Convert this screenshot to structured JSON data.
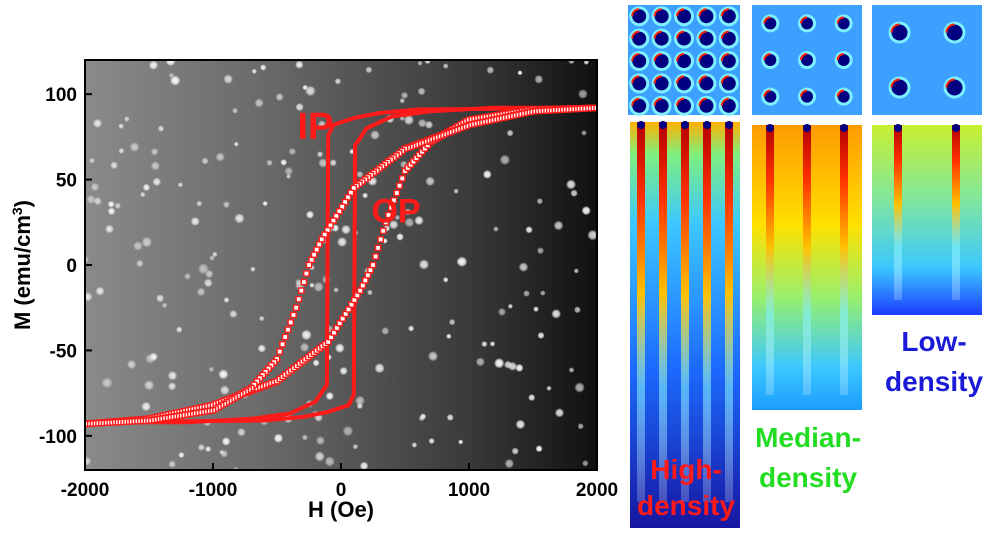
{
  "chart_data": {
    "type": "line",
    "xlabel": "H (Oe)",
    "ylabel_main": "M (emu/cm",
    "ylabel_sup": "3",
    "ylabel_close": ")",
    "xlim": [
      -2000,
      2000
    ],
    "ylim": [
      -120,
      120
    ],
    "x_ticks": [
      -2000,
      -1000,
      0,
      1000,
      2000
    ],
    "y_ticks": [
      -100,
      -50,
      0,
      50,
      100
    ],
    "x_tick_labels": [
      "-2000",
      "-1000",
      "0",
      "1000",
      "2000"
    ],
    "y_tick_labels": [
      "-100",
      "-50",
      "0",
      "50",
      "100"
    ],
    "background": "SEM image of nanodot array (grayscale)",
    "annotations": [
      {
        "text": "IP",
        "x": -200,
        "y": 82
      },
      {
        "text": "OP",
        "x": 430,
        "y": 32
      }
    ],
    "series": [
      {
        "name": "IP",
        "style": "solid",
        "color": "#ff1a1a",
        "ascending": [
          [
            -2000,
            -92
          ],
          [
            -600,
            -91
          ],
          [
            -300,
            -89
          ],
          [
            -100,
            -86
          ],
          [
            60,
            -82
          ],
          [
            100,
            -76
          ],
          [
            110,
            70
          ],
          [
            200,
            80
          ],
          [
            400,
            87
          ],
          [
            700,
            90
          ],
          [
            1200,
            92
          ],
          [
            2000,
            92
          ]
        ],
        "descending": [
          [
            2000,
            92
          ],
          [
            600,
            91
          ],
          [
            300,
            89
          ],
          [
            100,
            86
          ],
          [
            -60,
            82
          ],
          [
            -100,
            76
          ],
          [
            -110,
            -70
          ],
          [
            -200,
            -80
          ],
          [
            -400,
            -87
          ],
          [
            -700,
            -90
          ],
          [
            -1200,
            -92
          ],
          [
            -2000,
            -92
          ]
        ]
      },
      {
        "name": "OP",
        "style": "dotted",
        "color": "#ff1a1a",
        "ascending": [
          [
            -2000,
            -93
          ],
          [
            -1500,
            -90
          ],
          [
            -1000,
            -82
          ],
          [
            -500,
            -68
          ],
          [
            -100,
            -45
          ],
          [
            150,
            -15
          ],
          [
            250,
            0
          ],
          [
            350,
            25
          ],
          [
            500,
            55
          ],
          [
            700,
            72
          ],
          [
            1000,
            85
          ],
          [
            1500,
            91
          ],
          [
            2000,
            92
          ]
        ],
        "descending": [
          [
            2000,
            92
          ],
          [
            1500,
            90
          ],
          [
            1000,
            82
          ],
          [
            500,
            68
          ],
          [
            100,
            45
          ],
          [
            -150,
            15
          ],
          [
            -250,
            0
          ],
          [
            -350,
            -25
          ],
          [
            -500,
            -55
          ],
          [
            -700,
            -72
          ],
          [
            -1000,
            -85
          ],
          [
            -1500,
            -91
          ],
          [
            -2000,
            -93
          ]
        ]
      }
    ]
  },
  "simulation_panels": {
    "colors": {
      "top": "#b30000",
      "mid_hot": "#ffb000",
      "mid": "#3cc8ff",
      "bottom": "#1616c8",
      "label_high": "#ff1a1a",
      "label_median": "#22dd22",
      "label_low": "#1a1ad8"
    },
    "labels": {
      "high_1": "High-",
      "high_2": "density",
      "median_1": "Median-",
      "median_2": "density",
      "low_1": "Low-",
      "low_2": "density"
    }
  }
}
